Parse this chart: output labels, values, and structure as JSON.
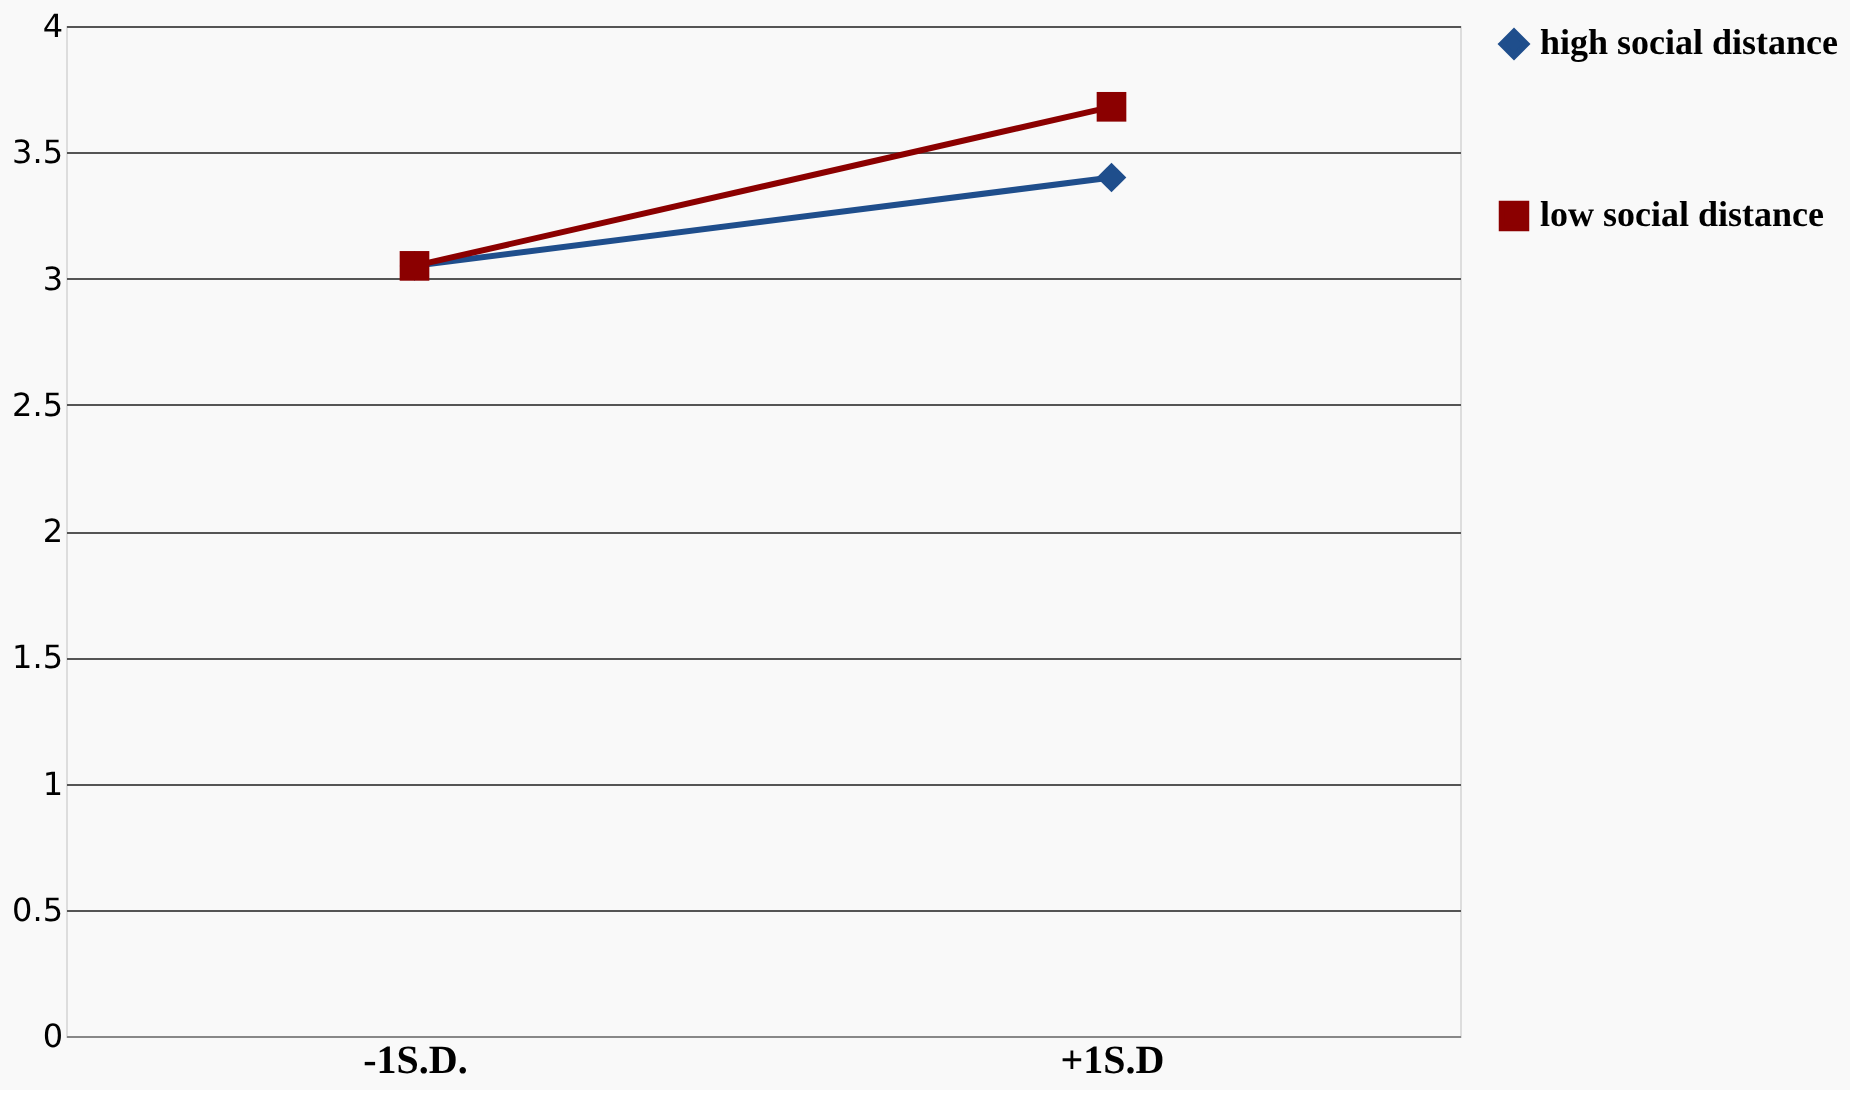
{
  "chart_data": {
    "type": "line",
    "categories": [
      "-1S.D.",
      "+1S.D"
    ],
    "series": [
      {
        "name": "high social distance",
        "color": "#1f4e8c",
        "values": [
          3.05,
          3.4
        ],
        "marker": "diamond"
      },
      {
        "name": "low social distance",
        "color": "#8b0000",
        "values": [
          3.05,
          3.68
        ],
        "marker": "square"
      }
    ],
    "ylim": [
      0,
      4
    ],
    "yticks": [
      0,
      0.5,
      1,
      1.5,
      2,
      2.5,
      3,
      3.5,
      4
    ],
    "grid": "y",
    "legend": "right",
    "line_style": "solid"
  }
}
